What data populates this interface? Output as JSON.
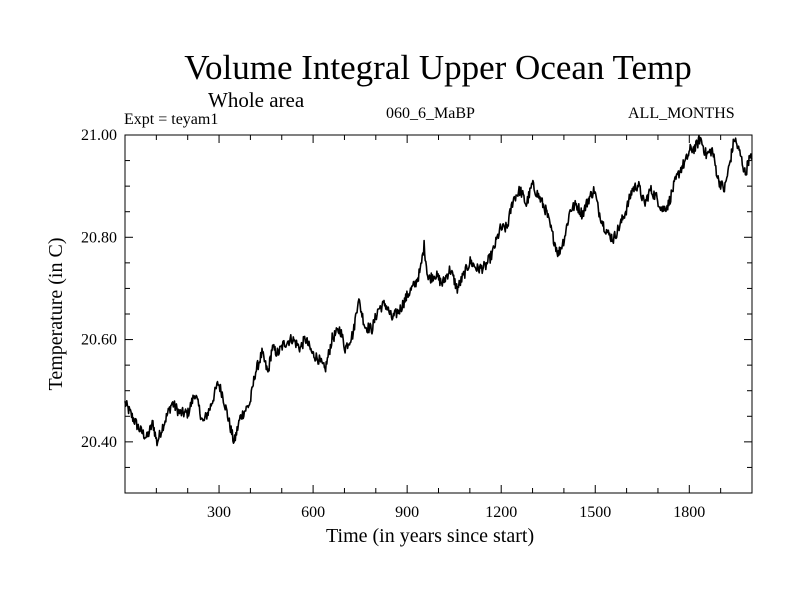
{
  "chart_data": {
    "type": "line",
    "title": "Volume Integral Upper Ocean Temp",
    "subtitle": "Whole area",
    "annotations": {
      "left": "Expt = teyam1",
      "center": "060_6_MaBP",
      "right": "ALL_MONTHS"
    },
    "xlabel": "Time (in years since start)",
    "ylabel": "Temperature (in C)",
    "xlim": [
      0,
      2000
    ],
    "ylim": [
      20.3,
      21.0
    ],
    "xticks": [
      300,
      600,
      900,
      1200,
      1500,
      1800
    ],
    "xtick_labels": [
      "300",
      "600",
      "900",
      "1200",
      "1500",
      "1800"
    ],
    "x_minor_step": 100,
    "yticks": [
      20.4,
      20.6,
      20.8,
      21.0
    ],
    "ytick_labels": [
      "20.40",
      "20.60",
      "20.80",
      "21.00"
    ],
    "y_minor_step": 0.05,
    "grid": false,
    "legend": "none",
    "series": [
      {
        "name": "Volume Integral Upper Ocean Temp",
        "color": "#000000",
        "x": [
          0,
          25,
          48,
          70,
          89,
          102,
          118,
          150,
          176,
          201,
          223,
          249,
          271,
          297,
          310,
          329,
          348,
          367,
          399,
          415,
          437,
          456,
          469,
          488,
          507,
          533,
          559,
          575,
          597,
          616,
          638,
          661,
          686,
          702,
          728,
          744,
          766,
          788,
          808,
          830,
          852,
          878,
          903,
          926,
          942,
          954,
          967,
          989,
          1012,
          1037,
          1060,
          1082,
          1101,
          1124,
          1149,
          1171,
          1197,
          1219,
          1238,
          1261,
          1280,
          1299,
          1325,
          1344,
          1363,
          1382,
          1401,
          1420,
          1440,
          1459,
          1478,
          1497,
          1510,
          1526,
          1542,
          1558,
          1580,
          1599,
          1618,
          1637,
          1657,
          1676,
          1695,
          1714,
          1733,
          1752,
          1771,
          1790,
          1803,
          1819,
          1835,
          1854,
          1873,
          1892,
          1912,
          1931,
          1944,
          1963,
          1979,
          1989,
          2000
        ],
        "y": [
          20.476,
          20.447,
          20.423,
          20.408,
          20.437,
          20.398,
          20.427,
          20.476,
          20.456,
          20.456,
          20.495,
          20.437,
          20.466,
          20.515,
          20.495,
          20.447,
          20.398,
          20.447,
          20.476,
          20.534,
          20.573,
          20.534,
          20.583,
          20.573,
          20.592,
          20.602,
          20.583,
          20.602,
          20.573,
          20.563,
          20.54,
          20.602,
          20.621,
          20.583,
          20.612,
          20.68,
          20.625,
          20.621,
          20.66,
          20.67,
          20.641,
          20.66,
          20.689,
          20.709,
          20.734,
          20.784,
          20.718,
          20.728,
          20.709,
          20.738,
          20.699,
          20.728,
          20.753,
          20.738,
          20.742,
          20.767,
          20.816,
          20.819,
          20.874,
          20.893,
          20.864,
          20.903,
          20.874,
          20.85,
          20.806,
          20.767,
          20.797,
          20.854,
          20.864,
          20.845,
          20.874,
          20.893,
          20.854,
          20.825,
          20.806,
          20.797,
          20.825,
          20.854,
          20.893,
          20.903,
          20.864,
          20.893,
          20.878,
          20.854,
          20.864,
          20.903,
          20.932,
          20.951,
          20.971,
          20.975,
          20.994,
          20.961,
          20.971,
          20.913,
          20.893,
          20.951,
          20.994,
          20.961,
          20.922,
          20.951,
          20.955
        ]
      }
    ]
  }
}
